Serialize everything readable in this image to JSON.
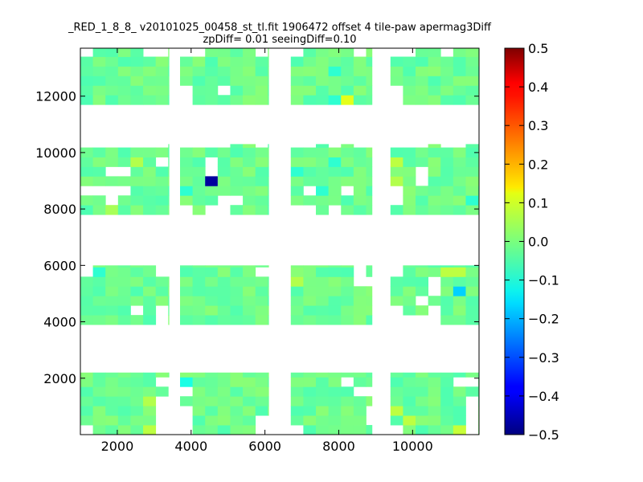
{
  "chart_data": {
    "type": "heatmap",
    "title_line1": "_RED_1_8_8_ v20101025_00458_st_tl.fit 1906472 offset 4 tile-paw apermag3Diff",
    "title_line2": "zpDiff= 0.01 seeingDiff=0.10",
    "xlabel": "",
    "ylabel": "",
    "xlim": [
      1000,
      11800
    ],
    "ylim": [
      0,
      13700
    ],
    "x_ticks": [
      2000,
      4000,
      6000,
      8000,
      10000
    ],
    "y_ticks": [
      2000,
      4000,
      6000,
      8000,
      10000,
      12000
    ],
    "colorbar": {
      "colormap": "jet",
      "range": [
        -0.5,
        0.5
      ],
      "ticks": [
        "0.5",
        "0.4",
        "0.3",
        "0.2",
        "0.1",
        "0.0",
        "−0.1",
        "−0.2",
        "−0.3",
        "−0.4",
        "−0.5"
      ],
      "tick_values": [
        0.5,
        0.4,
        0.3,
        0.2,
        0.1,
        0.0,
        -0.1,
        -0.2,
        -0.3,
        -0.4,
        -0.5
      ]
    },
    "grid": false,
    "cell_size": 340,
    "chips": [
      {
        "x0": 1000,
        "x1": 3400,
        "y0": 11700,
        "y1": 13700
      },
      {
        "x0": 3700,
        "x1": 6100,
        "y0": 11700,
        "y1": 13700
      },
      {
        "x0": 6700,
        "x1": 8900,
        "y0": 11700,
        "y1": 13700
      },
      {
        "x0": 9400,
        "x1": 11800,
        "y0": 11700,
        "y1": 13700
      },
      {
        "x0": 1000,
        "x1": 3400,
        "y0": 7800,
        "y1": 10300
      },
      {
        "x0": 3700,
        "x1": 6100,
        "y0": 7800,
        "y1": 10300
      },
      {
        "x0": 6700,
        "x1": 8900,
        "y0": 7800,
        "y1": 10300
      },
      {
        "x0": 9400,
        "x1": 11800,
        "y0": 7800,
        "y1": 10300
      },
      {
        "x0": 1000,
        "x1": 3400,
        "y0": 3900,
        "y1": 6000
      },
      {
        "x0": 3700,
        "x1": 6100,
        "y0": 3900,
        "y1": 6000
      },
      {
        "x0": 6700,
        "x1": 8900,
        "y0": 3900,
        "y1": 6000
      },
      {
        "x0": 9400,
        "x1": 11800,
        "y0": 3900,
        "y1": 6000
      },
      {
        "x0": 1000,
        "x1": 3400,
        "y0": 0,
        "y1": 2200
      },
      {
        "x0": 3700,
        "x1": 6100,
        "y0": 0,
        "y1": 2200
      },
      {
        "x0": 6700,
        "x1": 8900,
        "y0": 0,
        "y1": 2200
      },
      {
        "x0": 9400,
        "x1": 11800,
        "y0": 0,
        "y1": 2200
      }
    ],
    "holes": [
      {
        "x": 1050,
        "y": 13500
      },
      {
        "x": 2900,
        "y": 13500
      },
      {
        "x": 3100,
        "y": 13500
      },
      {
        "x": 3900,
        "y": 13500
      },
      {
        "x": 4200,
        "y": 13500
      },
      {
        "x": 5900,
        "y": 13500
      },
      {
        "x": 7000,
        "y": 13500
      },
      {
        "x": 8600,
        "y": 13500
      },
      {
        "x": 9600,
        "y": 13500
      },
      {
        "x": 10000,
        "y": 13500
      },
      {
        "x": 10900,
        "y": 13500
      },
      {
        "x": 3900,
        "y": 12200
      },
      {
        "x": 4900,
        "y": 12200
      },
      {
        "x": 9600,
        "y": 12200
      },
      {
        "x": 3700,
        "y": 12000
      },
      {
        "x": 9500,
        "y": 11800
      },
      {
        "x": 1100,
        "y": 10200
      },
      {
        "x": 1500,
        "y": 10200
      },
      {
        "x": 1800,
        "y": 10200
      },
      {
        "x": 2100,
        "y": 10200
      },
      {
        "x": 2400,
        "y": 10200
      },
      {
        "x": 2800,
        "y": 10200
      },
      {
        "x": 3100,
        "y": 10200
      },
      {
        "x": 3900,
        "y": 10200
      },
      {
        "x": 4200,
        "y": 10200
      },
      {
        "x": 4500,
        "y": 10200
      },
      {
        "x": 4800,
        "y": 10200
      },
      {
        "x": 5800,
        "y": 10200
      },
      {
        "x": 6800,
        "y": 10200
      },
      {
        "x": 7200,
        "y": 10200
      },
      {
        "x": 8000,
        "y": 10200
      },
      {
        "x": 8400,
        "y": 10200
      },
      {
        "x": 8800,
        "y": 10200
      },
      {
        "x": 9500,
        "y": 10200
      },
      {
        "x": 9900,
        "y": 10200
      },
      {
        "x": 10300,
        "y": 10200
      },
      {
        "x": 11000,
        "y": 10200
      },
      {
        "x": 11400,
        "y": 10200
      },
      {
        "x": 1900,
        "y": 9400
      },
      {
        "x": 2100,
        "y": 9400
      },
      {
        "x": 3100,
        "y": 9500
      },
      {
        "x": 4700,
        "y": 9500
      },
      {
        "x": 4700,
        "y": 9200
      },
      {
        "x": 10100,
        "y": 9400
      },
      {
        "x": 10200,
        "y": 9100
      },
      {
        "x": 1200,
        "y": 8800
      },
      {
        "x": 1500,
        "y": 8800
      },
      {
        "x": 2100,
        "y": 8800
      },
      {
        "x": 1900,
        "y": 8600
      },
      {
        "x": 1700,
        "y": 8300
      },
      {
        "x": 2000,
        "y": 8300
      },
      {
        "x": 8200,
        "y": 8800
      },
      {
        "x": 7200,
        "y": 8500
      },
      {
        "x": 9500,
        "y": 8600
      },
      {
        "x": 9500,
        "y": 8300
      },
      {
        "x": 5000,
        "y": 8400
      },
      {
        "x": 5300,
        "y": 8200
      },
      {
        "x": 3900,
        "y": 7900
      },
      {
        "x": 4600,
        "y": 7900
      },
      {
        "x": 4900,
        "y": 7900
      },
      {
        "x": 6900,
        "y": 7900
      },
      {
        "x": 7200,
        "y": 7900
      },
      {
        "x": 7800,
        "y": 7900
      },
      {
        "x": 1050,
        "y": 5900
      },
      {
        "x": 3300,
        "y": 5900
      },
      {
        "x": 8600,
        "y": 5900
      },
      {
        "x": 6000,
        "y": 5700
      },
      {
        "x": 9500,
        "y": 5800
      },
      {
        "x": 10600,
        "y": 5300
      },
      {
        "x": 10600,
        "y": 5000
      },
      {
        "x": 10400,
        "y": 4900
      },
      {
        "x": 9500,
        "y": 4400
      },
      {
        "x": 9500,
        "y": 4000
      },
      {
        "x": 9800,
        "y": 4100
      },
      {
        "x": 10200,
        "y": 4000
      },
      {
        "x": 10600,
        "y": 4300
      },
      {
        "x": 10600,
        "y": 4000
      },
      {
        "x": 2500,
        "y": 4400
      },
      {
        "x": 3100,
        "y": 4300
      },
      {
        "x": 3100,
        "y": 4000
      },
      {
        "x": 8700,
        "y": 5400
      },
      {
        "x": 9000,
        "y": 4000
      },
      {
        "x": 3300,
        "y": 1700
      },
      {
        "x": 3400,
        "y": 1500
      },
      {
        "x": 3900,
        "y": 1600
      },
      {
        "x": 8200,
        "y": 1700
      },
      {
        "x": 8500,
        "y": 1600
      },
      {
        "x": 8900,
        "y": 1400
      },
      {
        "x": 8800,
        "y": 1000
      },
      {
        "x": 8900,
        "y": 600
      },
      {
        "x": 1050,
        "y": 100
      },
      {
        "x": 1200,
        "y": 100
      },
      {
        "x": 3100,
        "y": 1200
      },
      {
        "x": 3300,
        "y": 1200
      },
      {
        "x": 3300,
        "y": 800
      },
      {
        "x": 3300,
        "y": 400
      },
      {
        "x": 3300,
        "y": 100
      },
      {
        "x": 3700,
        "y": 800
      },
      {
        "x": 3700,
        "y": 400
      },
      {
        "x": 3700,
        "y": 100
      },
      {
        "x": 6000,
        "y": 400
      },
      {
        "x": 6000,
        "y": 100
      },
      {
        "x": 6800,
        "y": 100
      },
      {
        "x": 9600,
        "y": 100
      },
      {
        "x": 11400,
        "y": 1700
      },
      {
        "x": 11600,
        "y": 1700
      },
      {
        "x": 11600,
        "y": 1300
      },
      {
        "x": 11600,
        "y": 1000
      },
      {
        "x": 11600,
        "y": 600
      },
      {
        "x": 11600,
        "y": 200
      }
    ],
    "base_value": -0.02,
    "highlights": [
      {
        "x": 4550,
        "y": 8850,
        "value": -0.47
      },
      {
        "x": 4550,
        "y": 9250,
        "value": -0.12
      },
      {
        "x": 8250,
        "y": 12000,
        "value": 0.1
      },
      {
        "x": 11300,
        "y": 5050,
        "value": -0.17
      },
      {
        "x": 8000,
        "y": 13000,
        "value": -0.08
      },
      {
        "x": 8000,
        "y": 12000,
        "value": -0.08
      },
      {
        "x": 6950,
        "y": 9250,
        "value": -0.08
      },
      {
        "x": 7950,
        "y": 9650,
        "value": -0.08
      },
      {
        "x": 7600,
        "y": 8500,
        "value": -0.08
      },
      {
        "x": 3850,
        "y": 8500,
        "value": -0.08
      },
      {
        "x": 11600,
        "y": 8150,
        "value": -0.08
      },
      {
        "x": 1550,
        "y": 5800,
        "value": -0.08
      },
      {
        "x": 3850,
        "y": 1950,
        "value": -0.1
      },
      {
        "x": 2450,
        "y": 9600,
        "value": 0.05
      },
      {
        "x": 9550,
        "y": 9600,
        "value": 0.06
      },
      {
        "x": 9550,
        "y": 8900,
        "value": 0.05
      },
      {
        "x": 2700,
        "y": 100,
        "value": 0.06
      },
      {
        "x": 2700,
        "y": 1100,
        "value": 0.05
      },
      {
        "x": 9900,
        "y": 600,
        "value": 0.06
      },
      {
        "x": 11250,
        "y": 200,
        "value": 0.07
      },
      {
        "x": 11250,
        "y": 5800,
        "value": 0.06
      },
      {
        "x": 10900,
        "y": 5800,
        "value": 0.06
      },
      {
        "x": 6900,
        "y": 5300,
        "value": 0.05
      },
      {
        "x": 9700,
        "y": 700,
        "value": 0.06
      },
      {
        "x": 2000,
        "y": 8050,
        "value": 0.04
      }
    ]
  }
}
